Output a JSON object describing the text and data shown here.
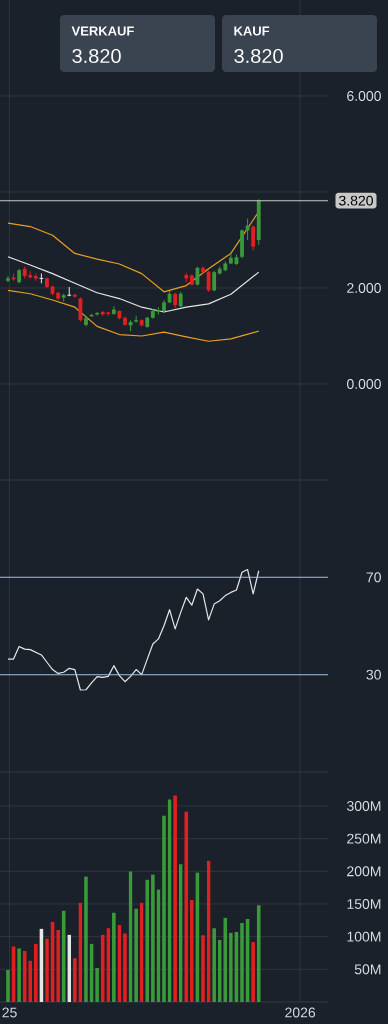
{
  "chart_data": [
    {
      "type": "candlestick",
      "x": [
        "2024-12-30",
        "2025-01-06",
        "2025-01-13",
        "2025-01-20",
        "2025-01-27",
        "2025-02-03",
        "2025-02-10",
        "2025-02-17",
        "2025-02-24",
        "2025-03-03",
        "2025-03-10",
        "2025-03-17",
        "2025-03-24",
        "2025-03-31",
        "2025-04-07",
        "2025-04-14",
        "2025-04-21",
        "2025-04-28",
        "2025-05-05",
        "2025-05-12",
        "2025-05-19",
        "2025-05-26",
        "2025-06-02",
        "2025-06-09",
        "2025-06-16",
        "2025-06-23",
        "2025-06-30",
        "2025-07-07",
        "2025-07-14",
        "2025-07-21",
        "2025-07-28",
        "2025-08-04",
        "2025-08-11",
        "2025-08-18",
        "2025-08-25",
        "2025-09-01",
        "2025-09-08",
        "2025-09-15",
        "2025-09-22",
        "2025-09-29",
        "2025-10-06",
        "2025-10-13",
        "2025-10-20",
        "2025-10-27",
        "2025-11-03",
        "2025-11-10"
      ],
      "ohlc": [
        [
          2.15,
          2.25,
          2.12,
          2.2
        ],
        [
          2.22,
          2.3,
          2.15,
          2.18
        ],
        [
          2.12,
          2.4,
          2.1,
          2.37
        ],
        [
          2.4,
          2.45,
          2.2,
          2.25
        ],
        [
          2.27,
          2.35,
          2.2,
          2.22
        ],
        [
          2.25,
          2.3,
          2.15,
          2.2
        ],
        [
          2.2,
          2.3,
          2.1,
          2.2
        ],
        [
          2.2,
          2.22,
          2.0,
          2.02
        ],
        [
          2.03,
          2.05,
          1.85,
          1.88
        ],
        [
          1.9,
          1.92,
          1.75,
          1.78
        ],
        [
          1.8,
          1.88,
          1.72,
          1.85
        ],
        [
          1.85,
          2.02,
          1.83,
          1.85
        ],
        [
          1.86,
          1.88,
          1.8,
          1.82
        ],
        [
          1.78,
          1.8,
          1.3,
          1.33
        ],
        [
          1.23,
          1.4,
          1.2,
          1.37
        ],
        [
          1.41,
          1.46,
          1.4,
          1.44
        ],
        [
          1.45,
          1.5,
          1.42,
          1.48
        ],
        [
          1.5,
          1.52,
          1.42,
          1.45
        ],
        [
          1.49,
          1.5,
          1.42,
          1.46
        ],
        [
          1.46,
          1.62,
          1.44,
          1.55
        ],
        [
          1.52,
          1.53,
          1.35,
          1.37
        ],
        [
          1.38,
          1.4,
          1.22,
          1.23
        ],
        [
          1.22,
          1.33,
          1.1,
          1.29
        ],
        [
          1.3,
          1.42,
          1.28,
          1.33
        ],
        [
          1.33,
          1.35,
          1.2,
          1.22
        ],
        [
          1.19,
          1.4,
          1.17,
          1.38
        ],
        [
          1.38,
          1.56,
          1.36,
          1.52
        ],
        [
          1.5,
          1.6,
          1.45,
          1.54
        ],
        [
          1.52,
          1.75,
          1.5,
          1.7
        ],
        [
          1.7,
          1.93,
          1.68,
          1.88
        ],
        [
          1.88,
          1.9,
          1.58,
          1.64
        ],
        [
          1.62,
          1.92,
          1.6,
          1.88
        ],
        [
          2.27,
          2.32,
          2.12,
          2.2
        ],
        [
          2.26,
          2.28,
          2.05,
          2.07
        ],
        [
          2.07,
          2.44,
          2.05,
          2.42
        ],
        [
          2.42,
          2.45,
          2.3,
          2.33
        ],
        [
          2.34,
          2.36,
          1.92,
          1.95
        ],
        [
          1.95,
          2.36,
          1.93,
          2.33
        ],
        [
          2.3,
          2.45,
          2.28,
          2.4
        ],
        [
          2.37,
          2.55,
          2.35,
          2.51
        ],
        [
          2.51,
          2.75,
          2.5,
          2.63
        ],
        [
          2.5,
          2.7,
          2.48,
          2.64
        ],
        [
          2.65,
          3.22,
          2.62,
          3.2
        ],
        [
          3.2,
          3.45,
          3.0,
          3.3
        ],
        [
          3.28,
          3.3,
          2.78,
          2.86
        ],
        [
          3.0,
          3.85,
          2.9,
          3.82
        ]
      ],
      "series": [
        {
          "type": "line",
          "color": "#e8a020",
          "x": [
            "2024-12-30",
            "2025-01-27",
            "2025-02-24",
            "2025-03-24",
            "2025-04-21",
            "2025-05-19",
            "2025-06-16",
            "2025-07-14",
            "2025-08-11",
            "2025-09-08",
            "2025-10-06",
            "2025-11-10"
          ],
          "values": [
            3.35,
            3.28,
            3.1,
            2.72,
            2.6,
            2.5,
            2.3,
            1.92,
            2.05,
            2.4,
            2.72,
            3.59
          ]
        },
        {
          "type": "line",
          "color": "#e6e6e6",
          "x": [
            "2024-12-30",
            "2025-01-27",
            "2025-02-24",
            "2025-03-24",
            "2025-04-21",
            "2025-05-19",
            "2025-06-16",
            "2025-07-14",
            "2025-08-11",
            "2025-09-08",
            "2025-10-06",
            "2025-11-10"
          ],
          "values": [
            2.65,
            2.48,
            2.3,
            2.1,
            1.9,
            1.78,
            1.6,
            1.5,
            1.6,
            1.67,
            1.87,
            2.33
          ]
        },
        {
          "type": "line",
          "color": "#e8a020",
          "x": [
            "2024-12-30",
            "2025-01-27",
            "2025-02-24",
            "2025-03-24",
            "2025-04-21",
            "2025-05-19",
            "2025-06-16",
            "2025-07-14",
            "2025-08-11",
            "2025-09-08",
            "2025-10-06",
            "2025-11-10"
          ],
          "values": [
            1.95,
            1.88,
            1.75,
            1.6,
            1.2,
            1.03,
            1.0,
            1.08,
            0.98,
            0.89,
            0.94,
            1.1
          ]
        }
      ],
      "xlim": [
        "2024-12-20",
        "2026-02-05"
      ],
      "xticks": [
        {
          "value": "2025-01-01",
          "label": null
        },
        {
          "value": "2026-01-01",
          "label": null
        }
      ],
      "ylim": [
        -2.0,
        8.0
      ],
      "yticks": [
        {
          "value": 0,
          "label": "0.000"
        },
        {
          "value": 2,
          "label": "2.000"
        },
        {
          "value": 4,
          "label": null
        },
        {
          "value": 6,
          "label": "6.000"
        }
      ],
      "ref_lines": [
        {
          "axis": "y",
          "value": 3.82,
          "label": "3.820",
          "color": "#c8c8c8"
        }
      ],
      "annotations": [
        "VERKAUF",
        "3.820",
        "KAUF",
        "3.820"
      ],
      "grid": true,
      "tick_labels": "y"
    },
    {
      "type": "line",
      "x": [
        "2024-12-30",
        "2025-01-06",
        "2025-01-13",
        "2025-01-20",
        "2025-01-27",
        "2025-02-03",
        "2025-02-10",
        "2025-02-17",
        "2025-02-24",
        "2025-03-03",
        "2025-03-10",
        "2025-03-17",
        "2025-03-24",
        "2025-03-31",
        "2025-04-07",
        "2025-04-14",
        "2025-04-21",
        "2025-04-28",
        "2025-05-05",
        "2025-05-12",
        "2025-05-19",
        "2025-05-26",
        "2025-06-02",
        "2025-06-09",
        "2025-06-16",
        "2025-06-23",
        "2025-06-30",
        "2025-07-07",
        "2025-07-14",
        "2025-07-21",
        "2025-07-28",
        "2025-08-04",
        "2025-08-11",
        "2025-08-18",
        "2025-08-25",
        "2025-09-01",
        "2025-09-08",
        "2025-09-15",
        "2025-09-22",
        "2025-09-29",
        "2025-10-06",
        "2025-10-13",
        "2025-10-20",
        "2025-10-27",
        "2025-11-03",
        "2025-11-10"
      ],
      "series": [
        {
          "color": "#e6e6e6",
          "values": [
            36.4,
            36.4,
            41.6,
            40.5,
            40.3,
            39.2,
            38.1,
            35.1,
            32.1,
            30.5,
            31,
            32.6,
            32.1,
            23.7,
            23.8,
            26.6,
            29.2,
            28.9,
            29.3,
            33.7,
            29.6,
            27.1,
            29.3,
            32.1,
            30,
            36.4,
            42.6,
            44.7,
            50.1,
            56.7,
            48.8,
            55.6,
            61.8,
            58.6,
            65.2,
            63.2,
            52.5,
            59,
            60.4,
            62.5,
            63.8,
            64.8,
            72.1,
            73.2,
            63.2,
            72.7
          ]
        }
      ],
      "xlim": [
        "2024-12-20",
        "2026-02-05"
      ],
      "xticks": [
        {
          "value": "2025-01-01",
          "label": null
        },
        {
          "value": "2026-01-01",
          "label": null
        }
      ],
      "ylim": [
        -10,
        110
      ],
      "yticks": [
        30,
        70
      ],
      "ref_lines": [
        {
          "axis": "y",
          "value": 70,
          "color": "#9fc0e8"
        },
        {
          "axis": "y",
          "value": 30,
          "color": "#9fc0e8"
        }
      ],
      "grid": "x",
      "tick_labels": "y"
    },
    {
      "type": "bar",
      "x": [
        "2024-12-30",
        "2025-01-06",
        "2025-01-13",
        "2025-01-20",
        "2025-01-27",
        "2025-02-03",
        "2025-02-10",
        "2025-02-17",
        "2025-02-24",
        "2025-03-03",
        "2025-03-10",
        "2025-03-17",
        "2025-03-24",
        "2025-03-31",
        "2025-04-07",
        "2025-04-14",
        "2025-04-21",
        "2025-04-28",
        "2025-05-05",
        "2025-05-12",
        "2025-05-19",
        "2025-05-26",
        "2025-06-02",
        "2025-06-09",
        "2025-06-16",
        "2025-06-23",
        "2025-06-30",
        "2025-07-07",
        "2025-07-14",
        "2025-07-21",
        "2025-07-28",
        "2025-08-04",
        "2025-08-11",
        "2025-08-18",
        "2025-08-25",
        "2025-09-01",
        "2025-09-08",
        "2025-09-15",
        "2025-09-22",
        "2025-09-29",
        "2025-10-06",
        "2025-10-13",
        "2025-10-20",
        "2025-10-27",
        "2025-11-03",
        "2025-11-10"
      ],
      "values": [
        49,
        85,
        82,
        78,
        63,
        89,
        112,
        97,
        123,
        110,
        140,
        103,
        67,
        152,
        192,
        89,
        52,
        103,
        113,
        137,
        118,
        105,
        200,
        143,
        152,
        187,
        195,
        172,
        285,
        310,
        316,
        211,
        291,
        156,
        198,
        102,
        216,
        113,
        95,
        129,
        106,
        107,
        121,
        127,
        92,
        148
      ],
      "colors": [
        "#3a9a3a",
        "#e02020",
        "#3a9a3a",
        "#e02020",
        "#e02020",
        "#e02020",
        "#e6e6e6",
        "#e02020",
        "#e02020",
        "#e02020",
        "#3a9a3a",
        "#e6e6e6",
        "#e02020",
        "#e02020",
        "#3a9a3a",
        "#3a9a3a",
        "#3a9a3a",
        "#e02020",
        "#e02020",
        "#3a9a3a",
        "#e02020",
        "#e02020",
        "#3a9a3a",
        "#3a9a3a",
        "#e02020",
        "#3a9a3a",
        "#3a9a3a",
        "#3a9a3a",
        "#3a9a3a",
        "#3a9a3a",
        "#e02020",
        "#3a9a3a",
        "#e02020",
        "#e02020",
        "#3a9a3a",
        "#e02020",
        "#e02020",
        "#3a9a3a",
        "#3a9a3a",
        "#3a9a3a",
        "#3a9a3a",
        "#3a9a3a",
        "#3a9a3a",
        "#3a9a3a",
        "#e02020",
        "#3a9a3a"
      ],
      "xlim": [
        "2024-12-20",
        "2026-02-05"
      ],
      "xticks": [
        {
          "value": "2025-01-01",
          "label": "25"
        },
        {
          "value": "2026-01-01",
          "label": "2026"
        }
      ],
      "ylim": [
        0,
        352
      ],
      "yticks": [
        {
          "value": 50,
          "label": "50M"
        },
        {
          "value": 100,
          "label": "100M"
        },
        {
          "value": 150,
          "label": "150M"
        },
        {
          "value": 200,
          "label": "200M"
        },
        {
          "value": 250,
          "label": "250M"
        },
        {
          "value": 300,
          "label": "300M"
        }
      ],
      "grid": true
    }
  ]
}
